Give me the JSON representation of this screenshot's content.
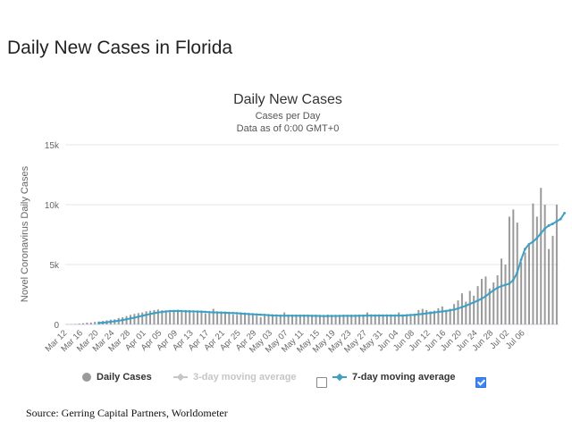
{
  "page": {
    "heading": "Daily New Cases in Florida",
    "source": "Source: Gerring Capital Partners, Worldometer"
  },
  "legend": {
    "daily": "Daily Cases",
    "ma3": "3-day moving average",
    "ma7": "7-day moving average",
    "ma3_checked": false,
    "ma7_checked": true
  },
  "colors": {
    "bars": "#9a9a9a",
    "ma7": "#3fa0c2",
    "ma3": "#c6c6c6",
    "checkbox_on": "#3a86f7",
    "grid": "#e6e6e6"
  },
  "chart_data": {
    "type": "bar",
    "title": "Daily New Cases",
    "subtitle": "Cases per Day",
    "subtitle2": "Data as of 0:00 GMT+0",
    "ylabel": "Novel Coronavirus Daily Cases",
    "ylim": [
      0,
      15000
    ],
    "yticks": [
      "0",
      "5k",
      "10k",
      "15k"
    ],
    "ytick_values": [
      0,
      5000,
      10000,
      15000
    ],
    "xtick_labels": [
      "Mar 12",
      "Mar 16",
      "Mar 20",
      "Mar 24",
      "Mar 28",
      "Apr 01",
      "Apr 05",
      "Apr 09",
      "Apr 13",
      "Apr 17",
      "Apr 21",
      "Apr 25",
      "Apr 29",
      "May 03",
      "May 07",
      "May 11",
      "May 15",
      "May 19",
      "May 23",
      "May 27",
      "May 31",
      "Jun 04",
      "Jun 08",
      "Jun 12",
      "Jun 16",
      "Jun 20",
      "Jun 24",
      "Jun 28",
      "Jul 02",
      "Jul 06"
    ],
    "grid": true,
    "legend_position": "bottom",
    "series": [
      {
        "name": "Daily Cases",
        "type": "bar",
        "values": [
          20,
          25,
          40,
          70,
          100,
          150,
          160,
          220,
          250,
          290,
          340,
          400,
          430,
          540,
          600,
          700,
          800,
          880,
          950,
          1000,
          1100,
          1150,
          1200,
          1250,
          1180,
          1100,
          1000,
          1050,
          1080,
          1000,
          1050,
          1100,
          960,
          1020,
          1050,
          900,
          900,
          1300,
          950,
          950,
          900,
          860,
          820,
          800,
          880,
          800,
          820,
          750,
          720,
          600,
          700,
          750,
          680,
          620,
          700,
          1000,
          720,
          780,
          720,
          700,
          820,
          750,
          700,
          650,
          680,
          650,
          820,
          700,
          700,
          650,
          700,
          620,
          750,
          700,
          720,
          690,
          1000,
          720,
          690,
          650,
          700,
          730,
          700,
          650,
          1000,
          720,
          680,
          670,
          800,
          1200,
          1300,
          1200,
          1100,
          1150,
          1350,
          1500,
          1200,
          1300,
          1700,
          2000,
          2600,
          1900,
          2800,
          2400,
          3200,
          3800,
          4000,
          3000,
          3500,
          4100,
          5500,
          5000,
          9000,
          9600,
          8500,
          5200,
          6000,
          6700,
          10100,
          9000,
          11400,
          10000,
          6300,
          7400,
          10000
        ]
      },
      {
        "name": "7-day moving average",
        "type": "line",
        "values": [
          null,
          null,
          null,
          null,
          null,
          null,
          null,
          null,
          120,
          150,
          180,
          220,
          260,
          310,
          360,
          430,
          500,
          560,
          640,
          720,
          800,
          870,
          940,
          1000,
          1040,
          1080,
          1110,
          1120,
          1130,
          1110,
          1100,
          1090,
          1080,
          1070,
          1060,
          1040,
          1020,
          1010,
          1000,
          990,
          980,
          960,
          950,
          930,
          910,
          890,
          870,
          850,
          830,
          810,
          790,
          770,
          750,
          740,
          730,
          730,
          730,
          730,
          730,
          730,
          730,
          730,
          720,
          720,
          710,
          700,
          700,
          710,
          710,
          710,
          720,
          720,
          720,
          720,
          730,
          730,
          740,
          740,
          740,
          740,
          740,
          740,
          740,
          740,
          740,
          740,
          760,
          780,
          800,
          840,
          880,
          920,
          960,
          1000,
          1040,
          1080,
          1120,
          1180,
          1240,
          1330,
          1440,
          1560,
          1700,
          1840,
          1980,
          2150,
          2350,
          2600,
          2850,
          3050,
          3200,
          3300,
          3400,
          3700,
          4300,
          5400,
          6300,
          6700,
          6900,
          7200,
          7600,
          8000,
          8250,
          8400,
          8600,
          8800,
          9300
        ]
      }
    ]
  }
}
